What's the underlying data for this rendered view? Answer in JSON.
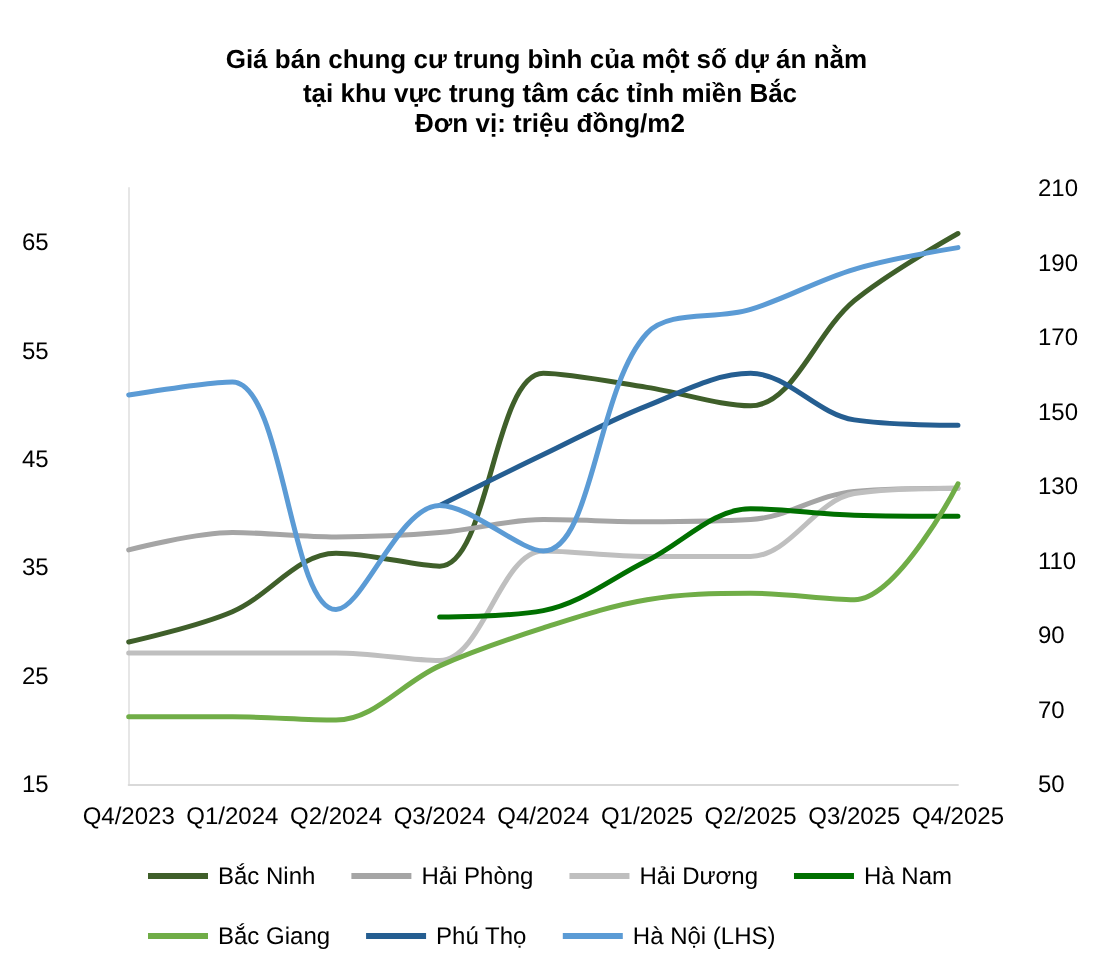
{
  "chart_data": {
    "type": "line",
    "title": "Giá bán chung cư trung bình của một số dự án nằm tại khu vực trung tâm các tỉnh miền Bắc",
    "subtitle": "Đơn vị: triệu đồng/m2",
    "categories": [
      "Q4/2023",
      "Q1/2024",
      "Q2/2024",
      "Q3/2024",
      "Q4/2024",
      "Q1/2025",
      "Q2/2025",
      "Q3/2025",
      "Q4/2025"
    ],
    "series": [
      {
        "name": "Bắc Ninh",
        "color": "#3f5f2a",
        "values": [
          28.1,
          30.9,
          36.3,
          35.1,
          52.9,
          51.6,
          49.9,
          59.6,
          65.8
        ]
      },
      {
        "name": "Hải Phòng",
        "color": "#a5a5a5",
        "values": [
          36.6,
          38.2,
          37.8,
          38.2,
          39.4,
          39.2,
          39.4,
          42.0,
          42.3
        ]
      },
      {
        "name": "Hải Dương",
        "color": "#bfbfbf",
        "values": [
          27.1,
          27.1,
          27.1,
          26.4,
          36.5,
          36.0,
          36.0,
          41.8,
          42.3
        ]
      },
      {
        "name": "Hà Nam",
        "color": "#007000",
        "values": [
          null,
          null,
          null,
          30.4,
          31.0,
          35.6,
          40.4,
          39.8,
          39.7
        ]
      },
      {
        "name": "Bắc Giang",
        "color": "#70ad47",
        "values": [
          21.2,
          21.2,
          20.9,
          25.9,
          29.4,
          32.0,
          32.6,
          32.0,
          42.7
        ]
      },
      {
        "name": "Phú Thọ",
        "color": "#255e91",
        "values": [
          null,
          null,
          null,
          40.7,
          45.4,
          49.9,
          52.9,
          48.6,
          48.1
        ]
      },
      {
        "name": "Hà Nội (LHS)",
        "color": "#5b9bd5",
        "values": [
          50.9,
          52.1,
          31.1,
          40.7,
          36.5,
          56.6,
          58.8,
          62.5,
          64.5
        ]
      }
    ],
    "ylim": [
      15,
      70
    ],
    "yticks": [
      15,
      25,
      35,
      45,
      55,
      65
    ],
    "y2lim": [
      50,
      210
    ],
    "y2ticks": [
      50,
      70,
      90,
      110,
      130,
      150,
      170,
      190,
      210
    ],
    "grid": false,
    "legend": "bottom",
    "marker": "none",
    "line_style": "solid"
  }
}
